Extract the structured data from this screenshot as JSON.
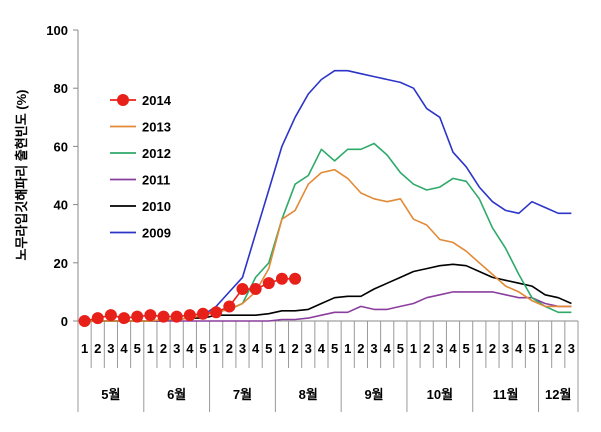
{
  "chart_data": {
    "type": "line",
    "title": "",
    "xlabel": "",
    "ylabel": "노무라입깃해파리 출현빈도 (%)",
    "ylim": [
      0,
      100
    ],
    "yticks": [
      "0",
      "20",
      "40",
      "60",
      "80",
      "100"
    ],
    "grid": false,
    "legend_position": "left",
    "week_labels": [
      "1",
      "2",
      "3",
      "4",
      "5",
      "1",
      "2",
      "3",
      "4",
      "5",
      "1",
      "2",
      "3",
      "4",
      "5",
      "1",
      "2",
      "3",
      "4",
      "5",
      "1",
      "2",
      "3",
      "4",
      "5",
      "1",
      "2",
      "3",
      "4",
      "5",
      "1",
      "2",
      "3",
      "4",
      "5",
      "1",
      "2",
      "3"
    ],
    "months": [
      {
        "label": "5월",
        "start": 0,
        "count": 5
      },
      {
        "label": "6월",
        "start": 5,
        "count": 5
      },
      {
        "label": "7월",
        "start": 10,
        "count": 5
      },
      {
        "label": "8월",
        "start": 15,
        "count": 5
      },
      {
        "label": "9월",
        "start": 20,
        "count": 5
      },
      {
        "label": "10월",
        "start": 25,
        "count": 5
      },
      {
        "label": "11월",
        "start": 30,
        "count": 5
      },
      {
        "label": "12월",
        "start": 35,
        "count": 3
      }
    ],
    "series": [
      {
        "name": "2014",
        "color": "#e8201a",
        "marker": "circle",
        "values": [
          0,
          1,
          2,
          1,
          1.5,
          2,
          1.5,
          1.5,
          2,
          2.5,
          3,
          5,
          11,
          11,
          13,
          14.5,
          14.5
        ]
      },
      {
        "name": "2013",
        "color": "#e28a36",
        "values": [
          0,
          0,
          0,
          0,
          0,
          0,
          0.5,
          0.5,
          1,
          2,
          3,
          4,
          6,
          10,
          18,
          35,
          38,
          47,
          51,
          52,
          49,
          44,
          42,
          41,
          42,
          35,
          33,
          28,
          27,
          24,
          20,
          16,
          12,
          10,
          7,
          5,
          5,
          5
        ]
      },
      {
        "name": "2012",
        "color": "#2eaa6a",
        "values": [
          0,
          0,
          0,
          0,
          0,
          0,
          0.5,
          0.5,
          1,
          2,
          3,
          4,
          6,
          15,
          20,
          35,
          47,
          50,
          59,
          55,
          59,
          59,
          61,
          57,
          51,
          47,
          45,
          46,
          49,
          48,
          42,
          32,
          25,
          16,
          8,
          5,
          3,
          3
        ]
      },
      {
        "name": "2011",
        "color": "#8a3f9e",
        "values": [
          0,
          0,
          0,
          0,
          0,
          0,
          0,
          0,
          0,
          0,
          0,
          0,
          0,
          0,
          0,
          0.5,
          0.5,
          1,
          2,
          3,
          3,
          5,
          4,
          4,
          5,
          6,
          8,
          9,
          10,
          10,
          10,
          10,
          9,
          8,
          8,
          6,
          5,
          5
        ]
      },
      {
        "name": "2010",
        "color": "#000000",
        "values": [
          0,
          0,
          0,
          0,
          0,
          0,
          0,
          0.5,
          1,
          1,
          2,
          2,
          2,
          2,
          2.5,
          3.5,
          3.5,
          4,
          6,
          8,
          8.5,
          8.5,
          11,
          13,
          15,
          17,
          18,
          19,
          19.5,
          19,
          17,
          15,
          14,
          13,
          12,
          9,
          8,
          6
        ]
      },
      {
        "name": "2009",
        "color": "#2c35c8",
        "values": [
          0,
          0,
          0,
          0,
          0,
          0,
          0.5,
          0.5,
          1,
          2,
          5,
          10,
          15,
          30,
          45,
          60,
          70,
          78,
          83,
          86,
          86,
          85,
          84,
          83,
          82,
          80,
          73,
          70,
          58,
          53,
          46,
          41,
          38,
          37,
          41,
          39,
          37,
          37
        ]
      }
    ]
  }
}
